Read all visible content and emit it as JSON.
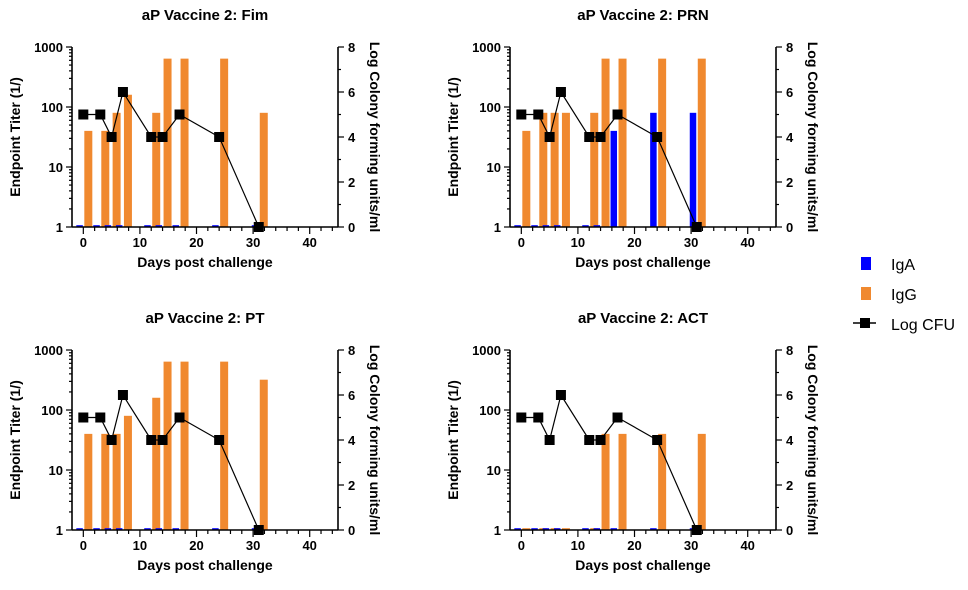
{
  "chart_data": [
    {
      "type": "bar",
      "title": "aP Vaccine 2: Fim",
      "xlabel": "Days post challenge",
      "ylabel": "Endpoint Titer (1/)",
      "y2label": "Log Colony forming units/ml",
      "yscale": "log",
      "ylim": [
        1,
        1000
      ],
      "y2lim": [
        0,
        8
      ],
      "xlim": [
        -2,
        45
      ],
      "xticks": [
        0,
        10,
        20,
        30,
        40
      ],
      "yticks": [
        1,
        10,
        100,
        1000
      ],
      "y2ticks": [
        0,
        2,
        4,
        6,
        8
      ],
      "x": [
        0,
        3,
        5,
        7,
        12,
        14,
        17,
        24,
        31
      ],
      "series": [
        {
          "name": "IgA",
          "kind": "bar",
          "values": [
            1,
            1,
            1,
            1,
            1,
            1,
            1,
            1,
            1
          ]
        },
        {
          "name": "IgG",
          "kind": "bar",
          "values": [
            40,
            40,
            80,
            160,
            80,
            640,
            640,
            640,
            80
          ]
        },
        {
          "name": "Log CFU",
          "kind": "line",
          "axis": "right",
          "values": [
            5,
            5,
            4,
            6,
            4,
            4,
            5,
            4,
            0
          ]
        }
      ]
    },
    {
      "type": "bar",
      "title": "aP Vaccine 2: PRN",
      "xlabel": "Days post challenge",
      "ylabel": "Endpoint Titer (1/)",
      "y2label": "Log Colony forming units/ml",
      "yscale": "log",
      "ylim": [
        1,
        1000
      ],
      "y2lim": [
        0,
        8
      ],
      "xlim": [
        -2,
        45
      ],
      "xticks": [
        0,
        10,
        20,
        30,
        40
      ],
      "yticks": [
        1,
        10,
        100,
        1000
      ],
      "y2ticks": [
        0,
        2,
        4,
        6,
        8
      ],
      "x": [
        0,
        3,
        5,
        7,
        12,
        14,
        17,
        24,
        31
      ],
      "series": [
        {
          "name": "IgA",
          "kind": "bar",
          "values": [
            1,
            1,
            1,
            1,
            1,
            1,
            40,
            80,
            80
          ]
        },
        {
          "name": "IgG",
          "kind": "bar",
          "values": [
            40,
            80,
            80,
            80,
            80,
            640,
            640,
            640,
            640
          ]
        },
        {
          "name": "Log CFU",
          "kind": "line",
          "axis": "right",
          "values": [
            5,
            5,
            4,
            6,
            4,
            4,
            5,
            4,
            0
          ]
        }
      ]
    },
    {
      "type": "bar",
      "title": "aP Vaccine 2: PT",
      "xlabel": "Days post challenge",
      "ylabel": "Endpoint Titer (1/)",
      "y2label": "Log Colony forming units/ml",
      "yscale": "log",
      "ylim": [
        1,
        1000
      ],
      "y2lim": [
        0,
        8
      ],
      "xlim": [
        -2,
        45
      ],
      "xticks": [
        0,
        10,
        20,
        30,
        40
      ],
      "yticks": [
        1,
        10,
        100,
        1000
      ],
      "y2ticks": [
        0,
        2,
        4,
        6,
        8
      ],
      "x": [
        0,
        3,
        5,
        7,
        12,
        14,
        17,
        24,
        31
      ],
      "series": [
        {
          "name": "IgA",
          "kind": "bar",
          "values": [
            1,
            1,
            1,
            1,
            1,
            1,
            1,
            1,
            1
          ]
        },
        {
          "name": "IgG",
          "kind": "bar",
          "values": [
            40,
            40,
            40,
            80,
            160,
            640,
            640,
            640,
            320
          ]
        },
        {
          "name": "Log CFU",
          "kind": "line",
          "axis": "right",
          "values": [
            5,
            5,
            4,
            6,
            4,
            4,
            5,
            4,
            0
          ]
        }
      ]
    },
    {
      "type": "bar",
      "title": "aP Vaccine 2: ACT",
      "xlabel": "Days post challenge",
      "ylabel": "Endpoint Titer (1/)",
      "y2label": "Log Colony forming units/ml",
      "yscale": "log",
      "ylim": [
        1,
        1000
      ],
      "y2lim": [
        0,
        8
      ],
      "xlim": [
        -2,
        45
      ],
      "xticks": [
        0,
        10,
        20,
        30,
        40
      ],
      "yticks": [
        1,
        10,
        100,
        1000
      ],
      "y2ticks": [
        0,
        2,
        4,
        6,
        8
      ],
      "x": [
        0,
        3,
        5,
        7,
        12,
        14,
        17,
        24,
        31
      ],
      "series": [
        {
          "name": "IgA",
          "kind": "bar",
          "values": [
            1,
            1,
            1,
            1,
            1,
            1,
            1,
            1,
            1
          ]
        },
        {
          "name": "IgG",
          "kind": "bar",
          "values": [
            1,
            1,
            1,
            1,
            1,
            40,
            40,
            40,
            40
          ]
        },
        {
          "name": "Log CFU",
          "kind": "line",
          "axis": "right",
          "values": [
            5,
            5,
            4,
            6,
            4,
            4,
            5,
            4,
            0
          ]
        }
      ]
    }
  ],
  "legend": {
    "placement": "right",
    "items": [
      {
        "name": "IgA",
        "kind": "bar",
        "color": "#0000ff"
      },
      {
        "name": "IgG",
        "kind": "bar",
        "color": "#f0892f"
      },
      {
        "name": "Log CFU",
        "kind": "line-square",
        "color": "#000000"
      }
    ]
  },
  "colors": {
    "IgA": "#0000ff",
    "IgG": "#f0892f",
    "Log CFU": "#000000"
  }
}
